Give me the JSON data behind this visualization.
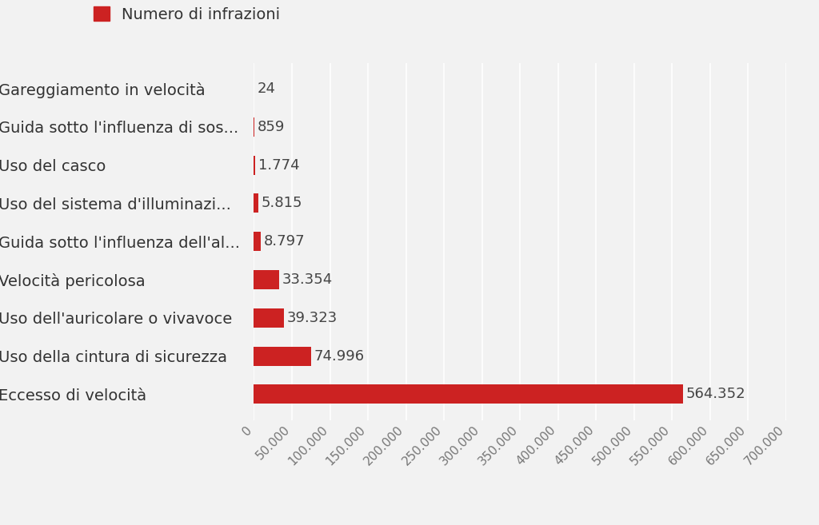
{
  "categories": [
    "Gareggiamento in velocità",
    "Guida sotto l'influenza di sos...",
    "Uso del casco",
    "Uso del sistema d'illuminazi...",
    "Guida sotto l'influenza dell'al...",
    "Velocità pericolosa",
    "Uso dell'auricolare o vivavoce",
    "Uso della cintura di sicurezza",
    "Eccesso di velocità"
  ],
  "values": [
    24,
    859,
    1774,
    5815,
    8797,
    33354,
    39323,
    74996,
    564352
  ],
  "bar_color": "#cc2222",
  "legend_label": "Numero di infrazioni",
  "value_labels": [
    "24",
    "859",
    "1.774",
    "5.815",
    "8.797",
    "33.354",
    "39.323",
    "74.996",
    "564.352"
  ],
  "xlim": [
    0,
    700000
  ],
  "xticks": [
    0,
    50000,
    100000,
    150000,
    200000,
    250000,
    300000,
    350000,
    400000,
    450000,
    500000,
    550000,
    600000,
    650000,
    700000
  ],
  "xtick_labels": [
    "0",
    "50.000",
    "100.000",
    "150.000",
    "200.000",
    "250.000",
    "300.000",
    "350.000",
    "400.000",
    "450.000",
    "500.000",
    "550.000",
    "600.000",
    "650.000",
    "700.000"
  ],
  "background_color": "#f2f2f2",
  "bar_height": 0.5,
  "font_size_labels": 14,
  "font_size_ticks": 11,
  "font_size_values": 13,
  "font_size_legend": 14
}
